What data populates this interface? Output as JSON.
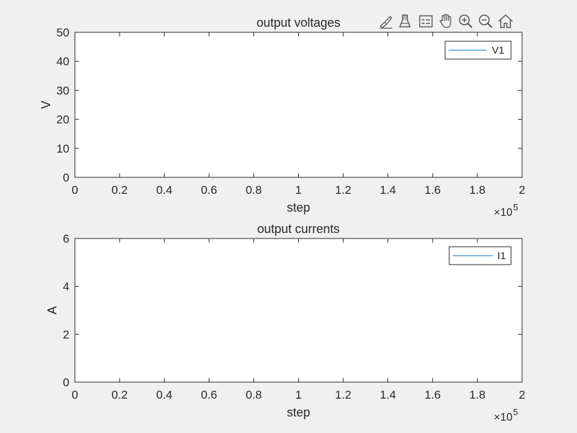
{
  "toolbar": {
    "items": [
      {
        "name": "brush-icon"
      },
      {
        "name": "data-tips-icon"
      },
      {
        "name": "legend-icon"
      },
      {
        "name": "pan-hand-icon"
      },
      {
        "name": "zoom-in-icon"
      },
      {
        "name": "zoom-out-icon"
      },
      {
        "name": "home-icon"
      }
    ]
  },
  "chart_data": [
    {
      "type": "line",
      "title": "output voltages",
      "xlabel": "step",
      "ylabel": "V",
      "xlim": [
        0,
        2
      ],
      "ylim": [
        0,
        50
      ],
      "xticks": [
        "0",
        "0.2",
        "0.4",
        "0.6",
        "0.8",
        "1",
        "1.2",
        "1.4",
        "1.6",
        "1.8",
        "2"
      ],
      "yticks": [
        "0",
        "10",
        "20",
        "30",
        "40",
        "50"
      ],
      "x_exponent_base": "×10",
      "x_exponent": "5",
      "legend_position": "top-right",
      "series": [
        {
          "name": "V1",
          "color": "#0072bd",
          "x": [],
          "y": []
        }
      ]
    },
    {
      "type": "line",
      "title": "output currents",
      "xlabel": "step",
      "ylabel": "A",
      "xlim": [
        0,
        2
      ],
      "ylim": [
        0,
        6
      ],
      "xticks": [
        "0",
        "0.2",
        "0.4",
        "0.6",
        "0.8",
        "1",
        "1.2",
        "1.4",
        "1.6",
        "1.8",
        "2"
      ],
      "yticks": [
        "0",
        "2",
        "4",
        "6"
      ],
      "x_exponent_base": "×10",
      "x_exponent": "5",
      "legend_position": "top-right",
      "series": [
        {
          "name": "I1",
          "color": "#0072bd",
          "x": [],
          "y": []
        }
      ]
    }
  ]
}
